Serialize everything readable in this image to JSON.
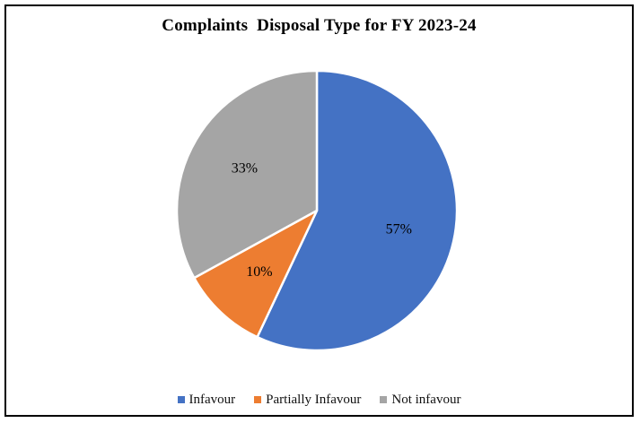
{
  "chart_data": {
    "type": "pie",
    "title": "Complaints  Disposal Type for FY 2023-24",
    "categories": [
      "Infavour",
      "Partially Infavour",
      "Not infavour"
    ],
    "values": [
      57,
      10,
      33
    ],
    "value_unit": "percent",
    "slice_labels": [
      "57%",
      "10%",
      "33%"
    ],
    "colors": [
      "#4472C4",
      "#ED7D31",
      "#A5A5A5"
    ],
    "label_color": "#000000",
    "start_angle_deg": 0,
    "direction": "clockwise",
    "slice_separator_color": "#ffffff",
    "legend_position": "bottom",
    "background": "#ffffff",
    "frame_border_color": "#000000"
  },
  "legend": {
    "items": [
      {
        "label": "Infavour",
        "color": "#4472C4"
      },
      {
        "label": "Partially Infavour",
        "color": "#ED7D31"
      },
      {
        "label": "Not infavour",
        "color": "#A5A5A5"
      }
    ]
  }
}
